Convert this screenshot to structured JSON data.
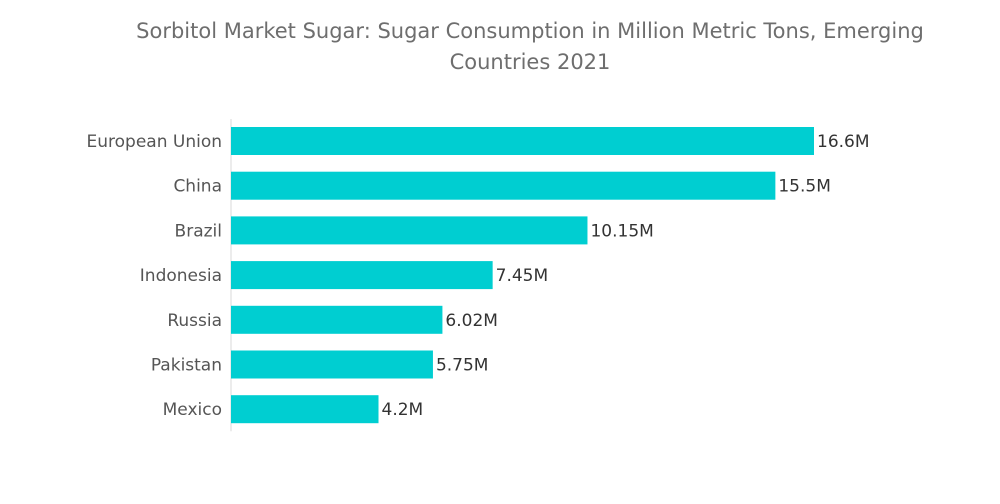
{
  "chart_data": {
    "type": "bar",
    "orientation": "horizontal",
    "title": "Sorbitol Market Sugar: Sugar Consumption in Million Metric Tons, Emerging Countries 2021",
    "categories": [
      "European Union",
      "China",
      "Brazil",
      "Indonesia",
      "Russia",
      "Pakistan",
      "Mexico"
    ],
    "values": [
      16.6,
      15.5,
      10.15,
      7.45,
      6.02,
      5.75,
      4.2
    ],
    "value_labels": [
      "16.6M",
      "15.5M",
      "10.15M",
      "7.45M",
      "6.02M",
      "5.75M",
      "4.2M"
    ],
    "xlabel": "",
    "ylabel": "",
    "xlim": [
      0,
      16.6
    ],
    "grid": false,
    "legend": "none",
    "colors": {
      "bar": "#00ced1",
      "baseline": "#d9d9d9",
      "title": "#6e6e6e",
      "category_text": "#555555",
      "value_text": "#333333"
    }
  }
}
